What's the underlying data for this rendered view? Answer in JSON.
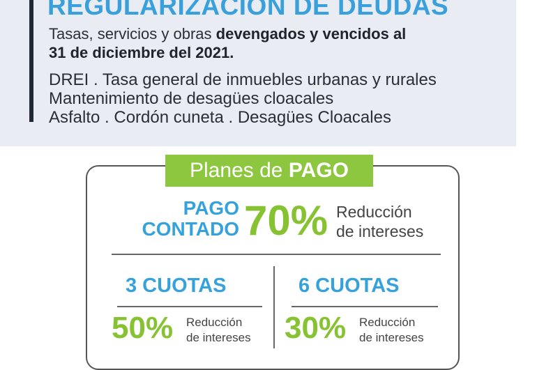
{
  "header": {
    "title": "REGULARIZACIÓN DE DEUDAS",
    "subtitle_normal": "Tasas, servicios y obras ",
    "subtitle_bold": "devengados y vencidos al",
    "subtitle_line2": "31 de diciembre del 2021.",
    "items": [
      "DREI  . Tasa general de inmuebles urbanas y rurales",
      "Mantenimiento de desagües cloacales",
      "Asfalto . Cordón cuneta . Desagües Cloacales"
    ]
  },
  "plans": {
    "label_light": "Planes de ",
    "label_bold": "PAGO",
    "contado": {
      "line1": "PAGO",
      "line2": "CONTADO",
      "percent": "70%",
      "desc1": "Reducción",
      "desc2": "de intereses"
    },
    "cuotas": [
      {
        "title": "3 CUOTAS",
        "percent": "50%",
        "desc1": "Reducción",
        "desc2": "de intereses"
      },
      {
        "title": "6 CUOTAS",
        "percent": "30%",
        "desc1": "Reducción",
        "desc2": "de intereses"
      }
    ]
  },
  "colors": {
    "blue": "#35a2dc",
    "green": "#86c232",
    "panel": "#e9edf3"
  }
}
